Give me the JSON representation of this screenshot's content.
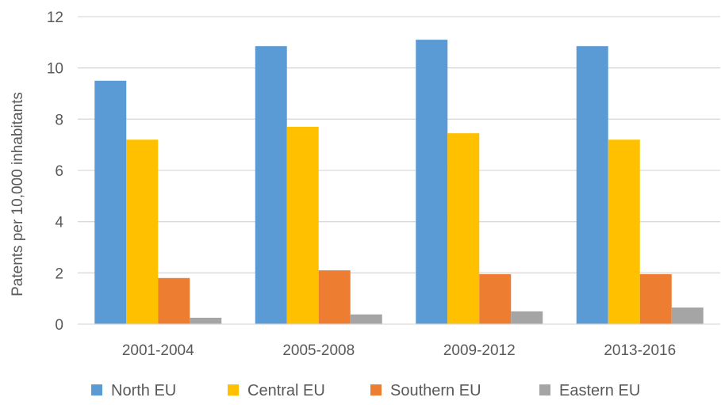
{
  "chart_data": {
    "type": "bar",
    "title": "",
    "xlabel": "",
    "ylabel": "Patents per 10,000 inhabitants",
    "ylim": [
      0,
      12
    ],
    "yticks": [
      0,
      2,
      4,
      6,
      8,
      10,
      12
    ],
    "grid": true,
    "legend_position": "bottom",
    "categories": [
      "2001-2004",
      "2005-2008",
      "2009-2012",
      "2013-2016"
    ],
    "series": [
      {
        "name": "North EU",
        "color": "#5b9bd5",
        "values": [
          9.5,
          10.85,
          11.1,
          10.85
        ]
      },
      {
        "name": "Central EU",
        "color": "#ffc000",
        "values": [
          7.2,
          7.7,
          7.45,
          7.2
        ]
      },
      {
        "name": "Southern EU",
        "color": "#ed7d31",
        "values": [
          1.8,
          2.1,
          1.95,
          1.95
        ]
      },
      {
        "name": "Eastern EU",
        "color": "#a5a5a5",
        "values": [
          0.25,
          0.38,
          0.5,
          0.65
        ]
      }
    ]
  }
}
